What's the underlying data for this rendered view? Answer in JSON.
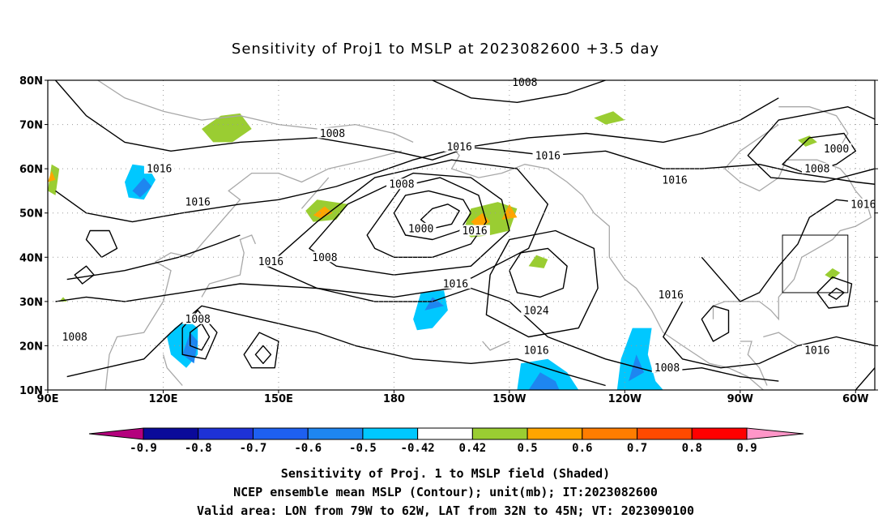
{
  "title": "Sensitivity of Proj1 to MSLP at 2023082600 +3.5 day",
  "lat_labels": [
    "80N",
    "70N",
    "60N",
    "50N",
    "40N",
    "30N",
    "20N",
    "10N"
  ],
  "lon_labels": [
    "90E",
    "120E",
    "150E",
    "180",
    "150W",
    "120W",
    "90W",
    "60W"
  ],
  "contour_labels": [
    {
      "text": "1008",
      "lon": -146,
      "lat": 79.5
    },
    {
      "text": "1008",
      "lon": 164,
      "lat": 68
    },
    {
      "text": "1016",
      "lon": -163,
      "lat": 65
    },
    {
      "text": "1016",
      "lon": -140,
      "lat": 63
    },
    {
      "text": "1000",
      "lon": -65,
      "lat": 64.5
    },
    {
      "text": "1008",
      "lon": -70,
      "lat": 60
    },
    {
      "text": "1016",
      "lon": 119,
      "lat": 60
    },
    {
      "text": "1008",
      "lon": -178,
      "lat": 56.5
    },
    {
      "text": "1016",
      "lon": -107,
      "lat": 57.5
    },
    {
      "text": "1016",
      "lon": 129,
      "lat": 52.5
    },
    {
      "text": "1016",
      "lon": -58,
      "lat": 52
    },
    {
      "text": "1000",
      "lon": -173,
      "lat": 46.5
    },
    {
      "text": "1016",
      "lon": -159,
      "lat": 46
    },
    {
      "text": "1008",
      "lon": 162,
      "lat": 40
    },
    {
      "text": "1016",
      "lon": 148,
      "lat": 39
    },
    {
      "text": "1016",
      "lon": -164,
      "lat": 34
    },
    {
      "text": "1024",
      "lon": -143,
      "lat": 28
    },
    {
      "text": "1016",
      "lon": -108,
      "lat": 31.5
    },
    {
      "text": "1008",
      "lon": 129,
      "lat": 26
    },
    {
      "text": "1008",
      "lon": 97,
      "lat": 22
    },
    {
      "text": "1016",
      "lon": -143,
      "lat": 19
    },
    {
      "text": "1016",
      "lon": -70,
      "lat": 19
    },
    {
      "text": "1008",
      "lon": -109,
      "lat": 15
    }
  ],
  "colorbar": {
    "labels": [
      "-0.9",
      "-0.8",
      "-0.7",
      "-0.6",
      "-0.5",
      "-0.42",
      "0.42",
      "0.5",
      "0.6",
      "0.7",
      "0.8",
      "0.9"
    ],
    "colors": [
      "#b4007d",
      "#0a0a9a",
      "#1e32d6",
      "#1e60f0",
      "#1e86f0",
      "#00c8ff",
      "#ffffff",
      "#9acd32",
      "#ffa500",
      "#ff7d00",
      "#ff4a00",
      "#ff0000",
      "#ff96c8"
    ]
  },
  "captions": [
    "Sensitivity of Proj. 1 to MSLP field (Shaded)",
    "NCEP ensemble mean MSLP (Contour); unit(mb); IT:2023082600",
    "Valid area: LON from 79W to 62W, LAT from 32N to 45N; VT: 2023090100"
  ],
  "valid_area": {
    "lon_from": -79,
    "lon_to": -62,
    "lat_from": 32,
    "lat_to": 45
  }
}
